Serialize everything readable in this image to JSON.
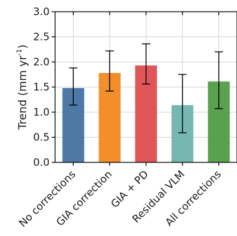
{
  "chart_data": {
    "type": "bar",
    "categories": [
      "No corrections",
      "GIA correction",
      "GIA + PD",
      "Residual VLM",
      "All corrections"
    ],
    "values": [
      1.48,
      1.78,
      1.93,
      1.14,
      1.61
    ],
    "error_low": [
      1.14,
      1.42,
      1.56,
      0.59,
      1.07
    ],
    "error_high": [
      1.88,
      2.22,
      2.36,
      1.75,
      2.2
    ],
    "colors": [
      "#4e79a7",
      "#f28e2b",
      "#e15759",
      "#76b7b2",
      "#59a14f"
    ],
    "ylabel_main": "Trend (mm yr",
    "ylabel_sup": "-1",
    "ylabel_end": ")",
    "xlabel": "",
    "ylim": [
      0.0,
      3.0
    ],
    "yticks": [
      0.0,
      0.5,
      1.0,
      1.5,
      2.0,
      2.5,
      3.0
    ],
    "ytick_labels": [
      "0.0",
      "0.5",
      "1.0",
      "1.5",
      "2.0",
      "2.5",
      "3.0"
    ],
    "grid": true,
    "legend": "none"
  }
}
